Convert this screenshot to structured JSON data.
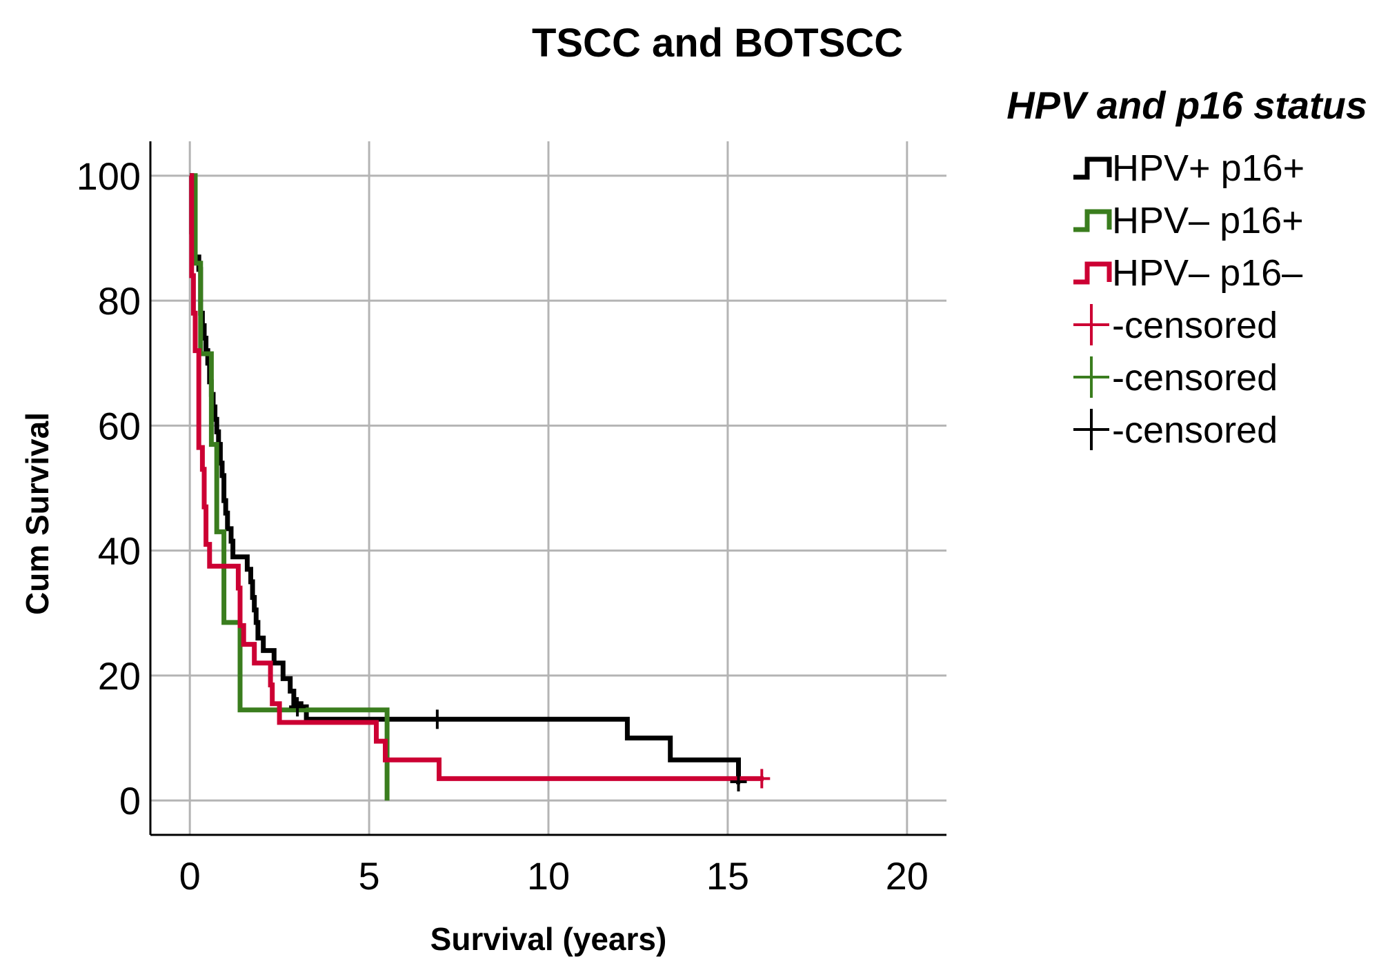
{
  "chart_data": {
    "type": "line",
    "subtype": "kaplan-meier",
    "title": "TSCC and BOTSCC",
    "xlabel": "Survival (years)",
    "ylabel": "Cum Survival",
    "xlim": [
      -1.1,
      21.1
    ],
    "ylim": [
      -5.5,
      105.5
    ],
    "xticks": [
      0,
      5,
      10,
      15,
      20
    ],
    "yticks": [
      0,
      20,
      40,
      60,
      80,
      100
    ],
    "xtick_labels": [
      "0",
      "5",
      "10",
      "15",
      "20"
    ],
    "ytick_labels": [
      "0",
      "20",
      "40",
      "60",
      "80",
      "100"
    ],
    "grid": true,
    "legend": {
      "title": "HPV and p16 status",
      "position": "right",
      "entries": [
        {
          "label": "HPV+ p16+",
          "kind": "line",
          "color": "#000000"
        },
        {
          "label": "HPV– p16+",
          "kind": "line",
          "color": "#3a7d1e"
        },
        {
          "label": "HPV– p16–",
          "kind": "line",
          "color": "#cc0033"
        },
        {
          "label": "-censored",
          "kind": "censor",
          "color": "#cc0033"
        },
        {
          "label": "-censored",
          "kind": "censor",
          "color": "#3a7d1e"
        },
        {
          "label": "-censored",
          "kind": "censor",
          "color": "#000000"
        }
      ]
    },
    "series": [
      {
        "id": "hpvpos-p16pos",
        "color": "#000000",
        "steps": [
          [
            0.0,
            100
          ],
          [
            0.05,
            91
          ],
          [
            0.1,
            87
          ],
          [
            0.25,
            85
          ],
          [
            0.3,
            78
          ],
          [
            0.35,
            76
          ],
          [
            0.4,
            74
          ],
          [
            0.45,
            72
          ],
          [
            0.5,
            70
          ],
          [
            0.55,
            67
          ],
          [
            0.6,
            65
          ],
          [
            0.65,
            63
          ],
          [
            0.7,
            61
          ],
          [
            0.75,
            59
          ],
          [
            0.8,
            57
          ],
          [
            0.85,
            54
          ],
          [
            0.9,
            52
          ],
          [
            0.95,
            48
          ],
          [
            1.0,
            46
          ],
          [
            1.05,
            43.5
          ],
          [
            1.15,
            41.5
          ],
          [
            1.2,
            39
          ],
          [
            1.6,
            37
          ],
          [
            1.7,
            35
          ],
          [
            1.75,
            32.5
          ],
          [
            1.8,
            30.5
          ],
          [
            1.85,
            28.5
          ],
          [
            1.9,
            26
          ],
          [
            2.05,
            24
          ],
          [
            2.35,
            22
          ],
          [
            2.6,
            19.5
          ],
          [
            2.8,
            17.5
          ],
          [
            2.9,
            15.5
          ],
          [
            3.1,
            15
          ],
          [
            3.25,
            13
          ],
          [
            12.2,
            10
          ],
          [
            13.4,
            6.5
          ],
          [
            15.3,
            3
          ]
        ],
        "end": 15.35,
        "censored": [
          [
            3.0,
            15
          ],
          [
            6.9,
            13
          ],
          [
            15.3,
            3
          ]
        ]
      },
      {
        "id": "hpvneg-p16pos",
        "color": "#3a7d1e",
        "steps": [
          [
            0.0,
            100
          ],
          [
            0.15,
            86
          ],
          [
            0.3,
            71.5
          ],
          [
            0.6,
            57
          ],
          [
            0.75,
            43
          ],
          [
            0.95,
            28.5
          ],
          [
            1.4,
            14.5
          ],
          [
            5.5,
            0
          ]
        ],
        "end": 5.5,
        "censored": []
      },
      {
        "id": "hpvneg-p16neg",
        "color": "#cc0033",
        "steps": [
          [
            0.0,
            100
          ],
          [
            0.05,
            84
          ],
          [
            0.1,
            78
          ],
          [
            0.15,
            72
          ],
          [
            0.25,
            56.5
          ],
          [
            0.35,
            53
          ],
          [
            0.4,
            47
          ],
          [
            0.45,
            41
          ],
          [
            0.55,
            37.5
          ],
          [
            1.35,
            34
          ],
          [
            1.4,
            28
          ],
          [
            1.5,
            25
          ],
          [
            1.8,
            22
          ],
          [
            2.25,
            18.5
          ],
          [
            2.3,
            15.5
          ],
          [
            2.5,
            12.5
          ],
          [
            5.2,
            9.5
          ],
          [
            5.45,
            6.5
          ],
          [
            6.95,
            3.5
          ]
        ],
        "end": 16.0,
        "censored": [
          [
            15.95,
            3.5
          ]
        ]
      }
    ]
  }
}
